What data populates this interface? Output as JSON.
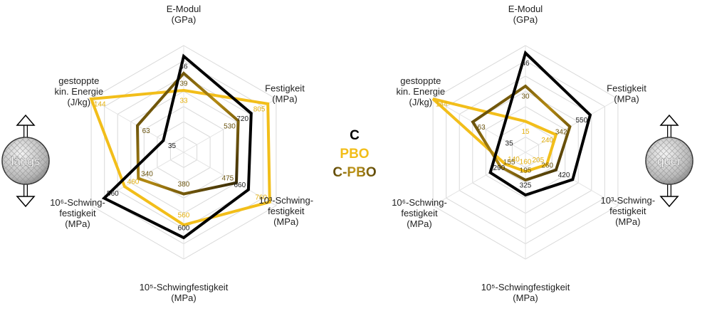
{
  "chart_data": [
    {
      "type": "radar",
      "orientation_label": "längs",
      "axes": [
        {
          "label": [
            "E-Modul",
            "(GPa)"
          ]
        },
        {
          "label": [
            "Festigkeit",
            "(MPa)"
          ]
        },
        {
          "label": [
            "10³-Schwing-",
            "festigkeit",
            "(MPa)"
          ]
        },
        {
          "label": [
            "10⁵-Schwingfestigkeit",
            "(MPa)"
          ]
        },
        {
          "label": [
            "10⁶-Schwing-",
            "festigkeit",
            "(MPa)"
          ]
        },
        {
          "label": [
            "gestoppte",
            "kin. Energie",
            "(J/kg)"
          ]
        }
      ],
      "series": [
        {
          "name": "C",
          "color": "#000000",
          "values": [
            46,
            720,
            660,
            600,
            560,
            35
          ],
          "norm": [
            0.9,
            0.73,
            0.7,
            0.8,
            0.86,
            0.22
          ]
        },
        {
          "name": "PBO",
          "color": "#F2BE1A",
          "values": [
            33,
            805,
            760,
            560,
            460,
            144
          ],
          "norm": [
            0.58,
            0.91,
            0.93,
            0.68,
            0.64,
            1.0
          ]
        },
        {
          "name": "C-PBO",
          "color": "#5C4A12",
          "values": [
            39,
            530,
            475,
            380,
            340,
            63
          ],
          "norm": [
            0.74,
            0.59,
            0.57,
            0.39,
            0.49,
            0.5
          ]
        }
      ]
    },
    {
      "type": "radar",
      "orientation_label": "quer",
      "axes": [
        {
          "label": [
            "E-Modul",
            "(GPa)"
          ]
        },
        {
          "label": [
            "Festigkeit",
            "(MPa)"
          ]
        },
        {
          "label": [
            "10³-Schwing-",
            "festigkeit",
            "(MPa)"
          ]
        },
        {
          "label": [
            "10⁵-Schwingfestigkeit",
            "(MPa)"
          ]
        },
        {
          "label": [
            "10⁶-Schwing-",
            "festigkeit",
            "(MPa)"
          ]
        },
        {
          "label": [
            "gestoppte",
            "kin. Energie",
            "(J/kg)"
          ]
        }
      ],
      "series": [
        {
          "name": "C",
          "color": "#000000",
          "values": [
            46,
            550,
            420,
            325,
            290,
            35
          ],
          "norm": [
            0.93,
            0.7,
            0.51,
            0.4,
            0.38,
            0.27
          ]
        },
        {
          "name": "PBO",
          "color": "#F2BE1A",
          "values": [
            15,
            240,
            205,
            160,
            140,
            144
          ],
          "norm": [
            0.29,
            0.33,
            0.23,
            0.18,
            0.22,
            1.0
          ]
        },
        {
          "name": "C-PBO",
          "color": "#5C4A12",
          "values": [
            30,
            342,
            260,
            195,
            155,
            63
          ],
          "norm": [
            0.62,
            0.48,
            0.33,
            0.26,
            0.27,
            0.57
          ]
        }
      ]
    }
  ],
  "legend": [
    {
      "label": "C",
      "color": "#000000"
    },
    {
      "label": "PBO",
      "color": "#F2BE1A"
    },
    {
      "label": "C-PBO",
      "color": "#5C4A12"
    }
  ]
}
